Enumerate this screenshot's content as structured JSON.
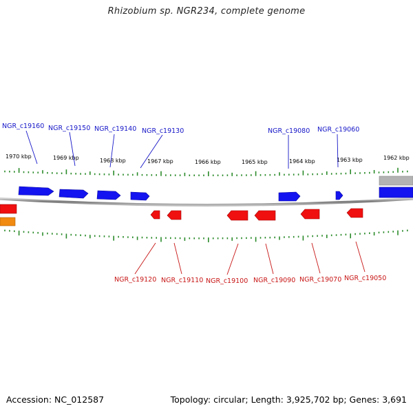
{
  "title": "Rhizobium sp. NGR234, complete genome",
  "footer": {
    "accession": "Accession: NC_012587",
    "summary": "Topology: circular; Length: 3,925,702 bp; Genes: 3,691"
  },
  "colors": {
    "plus_strand": "#1010f0",
    "minus_strand": "#f01010",
    "tick": "#2a8a2a",
    "backbone": "#8a8a8a",
    "orange_feature": "#f08a10",
    "grey_feature": "#b0b0b0"
  },
  "kbp_labels": [
    "1970 kbp",
    "1969 kbp",
    "1968 kbp",
    "1967 kbp",
    "1966 kbp",
    "1965 kbp",
    "1964 kbp",
    "1963 kbp",
    "1962 kbp"
  ],
  "plus_labels": [
    "NGR_c19160",
    "NGR_c19150",
    "NGR_c19140",
    "NGR_c19130",
    "NGR_c19080",
    "NGR_c19060"
  ],
  "minus_labels": [
    "NGR_c19120",
    "NGR_c19110",
    "NGR_c19100",
    "NGR_c19090",
    "NGR_c19070",
    "NGR_c19050"
  ]
}
